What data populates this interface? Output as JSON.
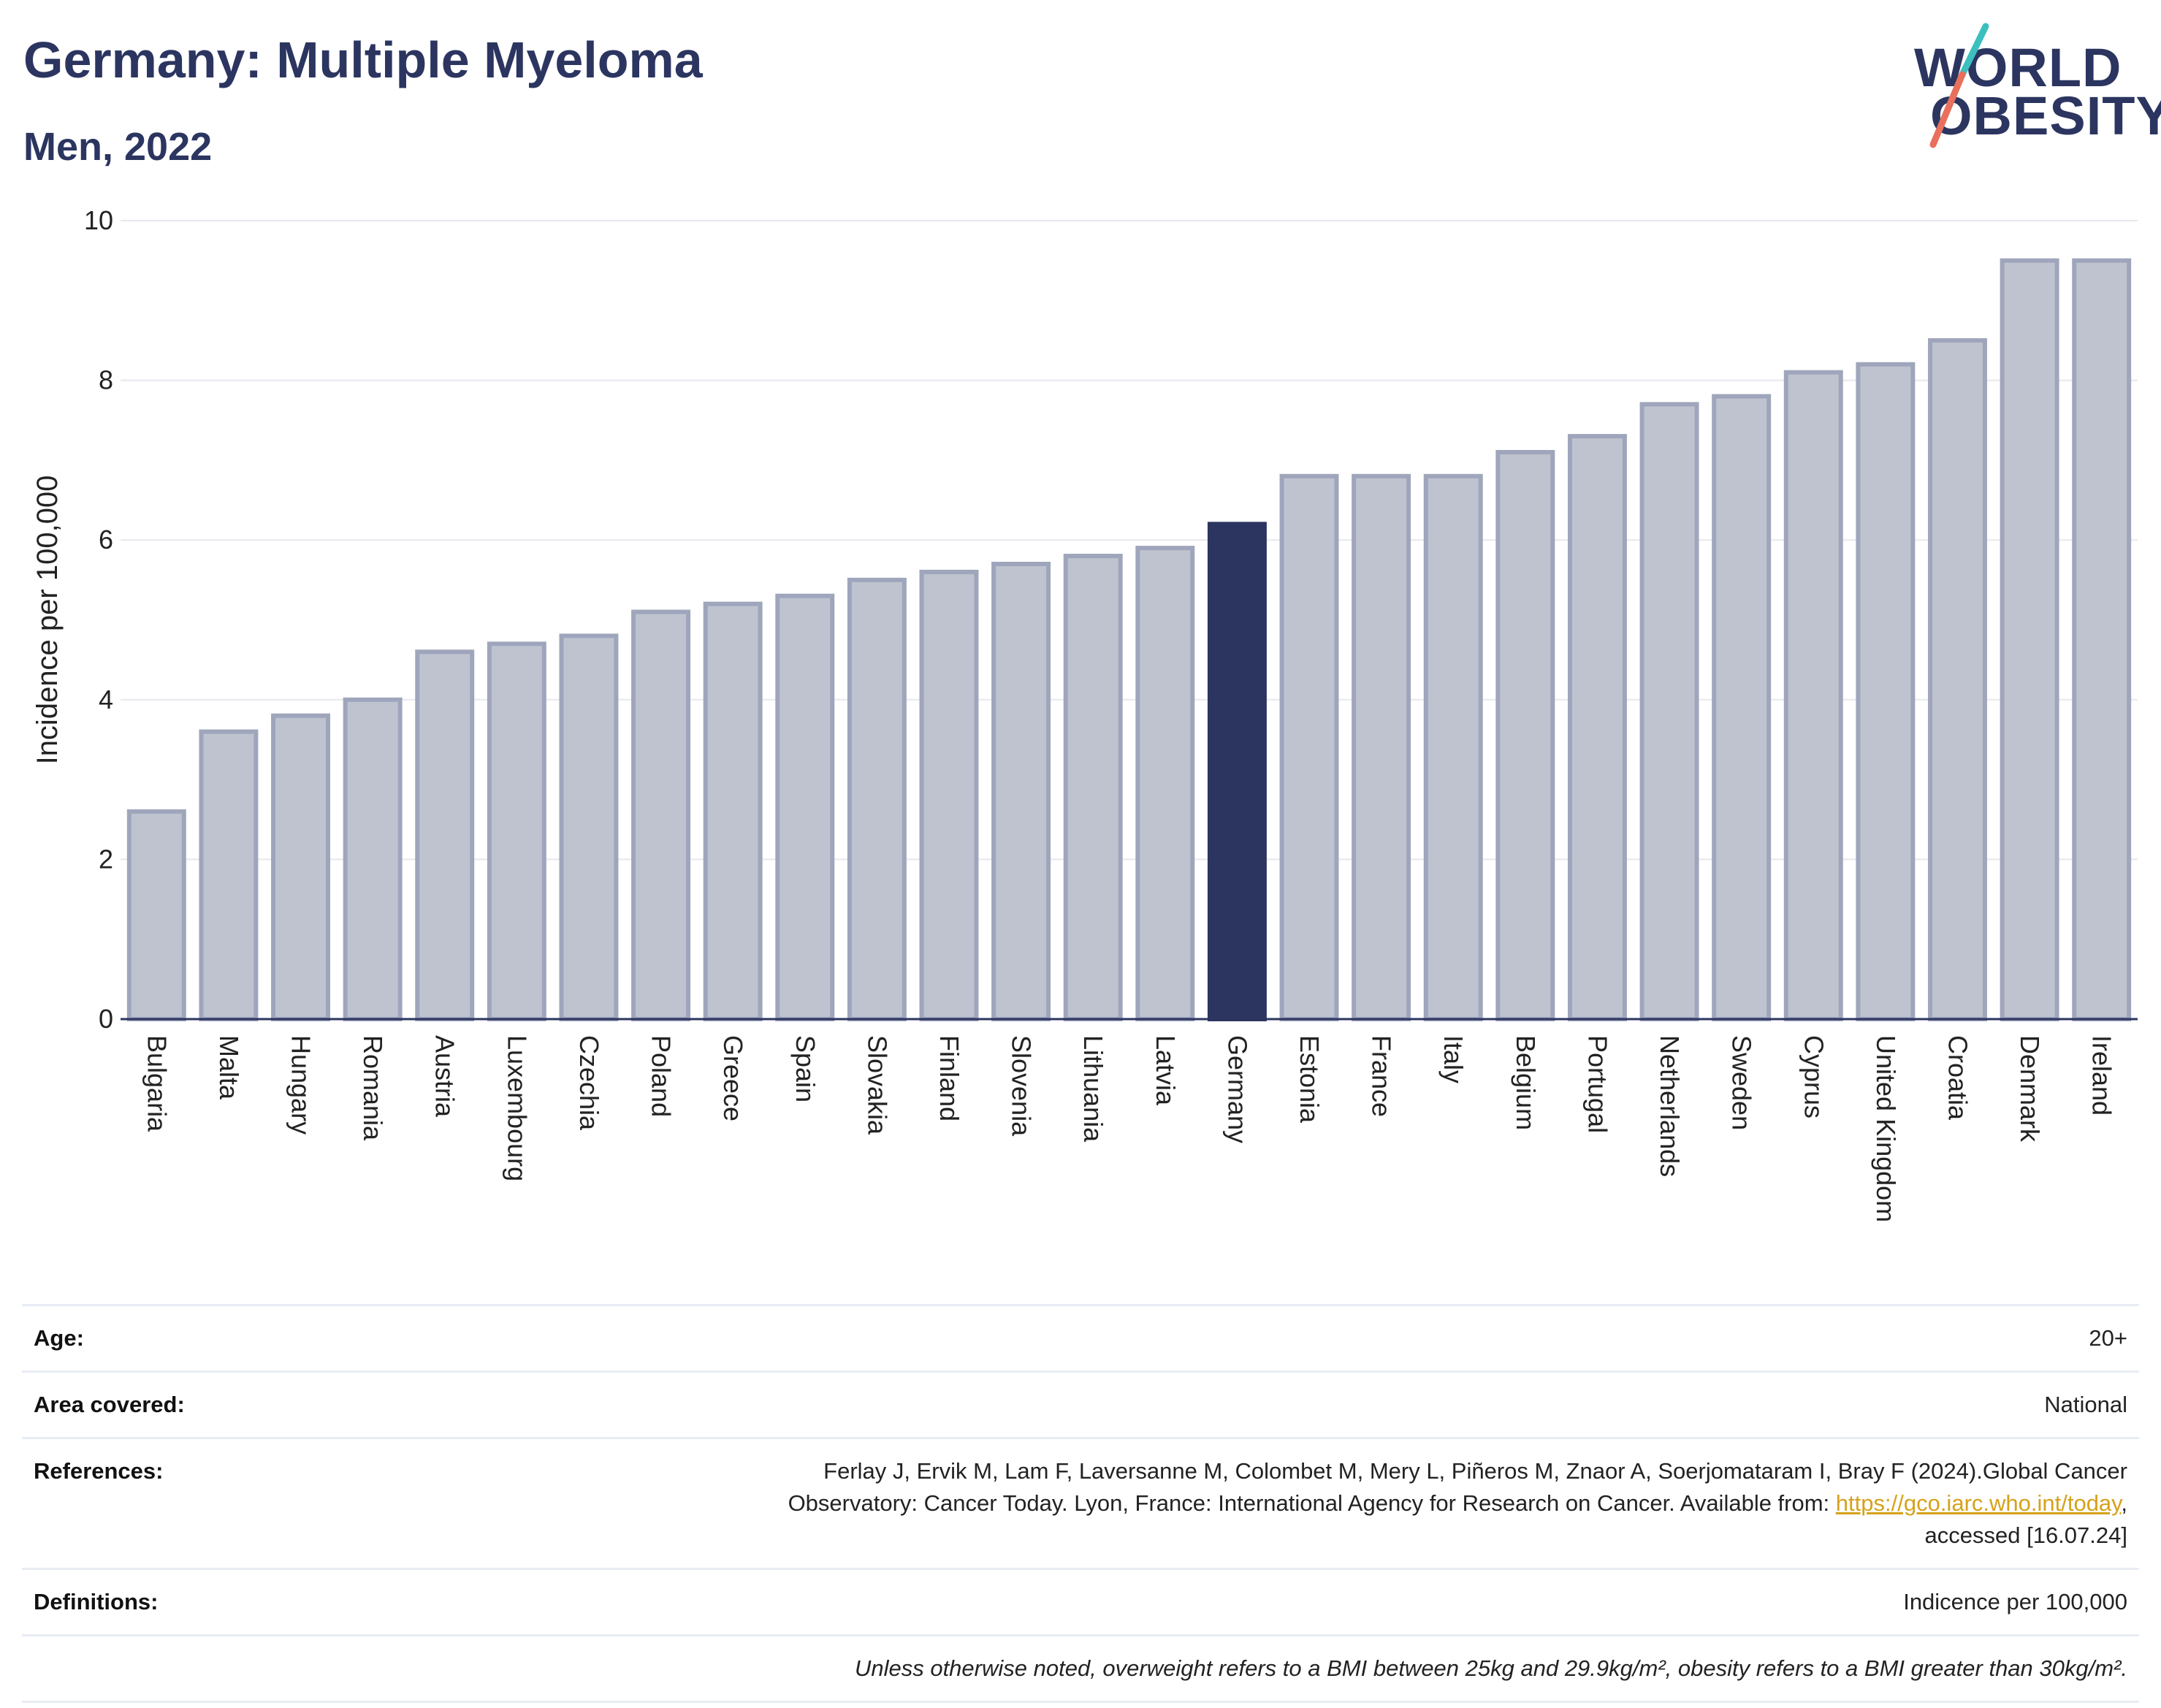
{
  "header": {
    "title": "Germany: Multiple Myeloma",
    "subtitle": "Men, 2022",
    "logo_line1": "WORLD",
    "logo_line2": "OBESITY"
  },
  "colors": {
    "bar": "#bfc3d0",
    "bar_edge": "#9fa5bb",
    "highlight": "#2b3560",
    "grid": "#e6e8ee",
    "axis": "#2b3560",
    "logo_teal": "#3bbfbf",
    "logo_coral": "#e8705c"
  },
  "chart_data": {
    "type": "bar",
    "ylabel": "Incidence per 100,000",
    "ylim": [
      0,
      10
    ],
    "yticks": [
      0,
      2,
      4,
      6,
      8,
      10
    ],
    "highlight": "Germany",
    "grid": true,
    "categories": [
      "Bulgaria",
      "Malta",
      "Hungary",
      "Romania",
      "Austria",
      "Luxembourg",
      "Czechia",
      "Poland",
      "Greece",
      "Spain",
      "Slovakia",
      "Finland",
      "Slovenia",
      "Lithuania",
      "Latvia",
      "Germany",
      "Estonia",
      "France",
      "Italy",
      "Belgium",
      "Portugal",
      "Netherlands",
      "Sweden",
      "Cyprus",
      "United Kingdom",
      "Croatia",
      "Denmark",
      "Ireland"
    ],
    "values": [
      2.6,
      3.6,
      3.8,
      4.0,
      4.6,
      4.7,
      4.8,
      5.1,
      5.2,
      5.3,
      5.5,
      5.6,
      5.7,
      5.8,
      5.9,
      6.2,
      6.8,
      6.8,
      6.8,
      7.1,
      7.3,
      7.7,
      7.8,
      8.1,
      8.2,
      8.5,
      9.5,
      9.5
    ]
  },
  "meta": {
    "age_label": "Age:",
    "age_value": "20+",
    "area_label": "Area covered:",
    "area_value": "National",
    "references_label": "References:",
    "references_line1": "Ferlay J, Ervik M, Lam F, Laversanne M, Colombet M, Mery L, Piñeros M, Znaor A, Soerjomataram I, Bray F (2024).Global Cancer",
    "references_line2_pre": "Observatory: Cancer Today. Lyon, France: International Agency for Research on Cancer. Available from: ",
    "references_link": "https://gco.iarc.who.int/today",
    "references_line2_post": ",",
    "references_line3": "accessed [16.07.24]",
    "definitions_label": "Definitions:",
    "definitions_value": "Indicence per 100,000",
    "note": "Unless otherwise noted, overweight refers to a BMI between 25kg and 29.9kg/m², obesity refers to a BMI greater than 30kg/m²."
  }
}
